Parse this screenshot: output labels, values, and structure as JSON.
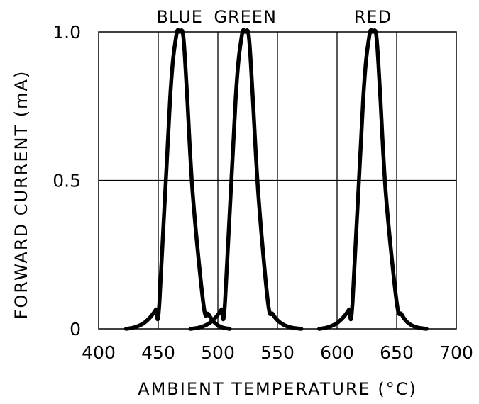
{
  "chart_data": {
    "type": "line",
    "xlabel": "AMBIENT TEMPERATURE (°C)",
    "ylabel": "FORWARD CURRENT (mA)",
    "xlim": [
      400,
      700
    ],
    "ylim": [
      0,
      1.0
    ],
    "x_ticks": [
      400,
      450,
      500,
      550,
      600,
      650,
      700
    ],
    "x_tick_labels": [
      "400",
      "450",
      "500",
      "550",
      "600",
      "650",
      "700"
    ],
    "y_ticks": [
      0,
      0.5,
      1.0
    ],
    "y_tick_labels": [
      "0",
      "0.5",
      "1.0"
    ],
    "grid": true,
    "line_color": "#000000",
    "series": [
      {
        "name": "BLUE",
        "x": [
          423,
          430,
          437,
          443,
          448,
          451,
          460,
          465,
          468,
          471,
          474,
          479,
          488,
          492,
          497,
          503,
          510
        ],
        "y": [
          0,
          0.005,
          0.017,
          0.038,
          0.065,
          0.09,
          0.78,
          0.985,
          1.0,
          0.985,
          0.8,
          0.45,
          0.08,
          0.05,
          0.022,
          0.006,
          0
        ]
      },
      {
        "name": "GREEN",
        "x": [
          477,
          485,
          492,
          498,
          503,
          506,
          515,
          520,
          523,
          526,
          529,
          534,
          542,
          546,
          552,
          560,
          570
        ],
        "y": [
          0,
          0.005,
          0.017,
          0.038,
          0.065,
          0.09,
          0.78,
          0.985,
          1.0,
          0.985,
          0.8,
          0.45,
          0.09,
          0.05,
          0.022,
          0.006,
          0
        ]
      },
      {
        "name": "RED",
        "x": [
          585,
          592,
          599,
          605,
          610,
          613,
          622,
          627,
          630,
          633,
          636,
          641,
          650,
          654,
          659,
          666,
          675
        ],
        "y": [
          0,
          0.005,
          0.017,
          0.038,
          0.065,
          0.09,
          0.78,
          0.985,
          1.0,
          0.985,
          0.8,
          0.45,
          0.09,
          0.05,
          0.022,
          0.006,
          0
        ]
      }
    ]
  }
}
